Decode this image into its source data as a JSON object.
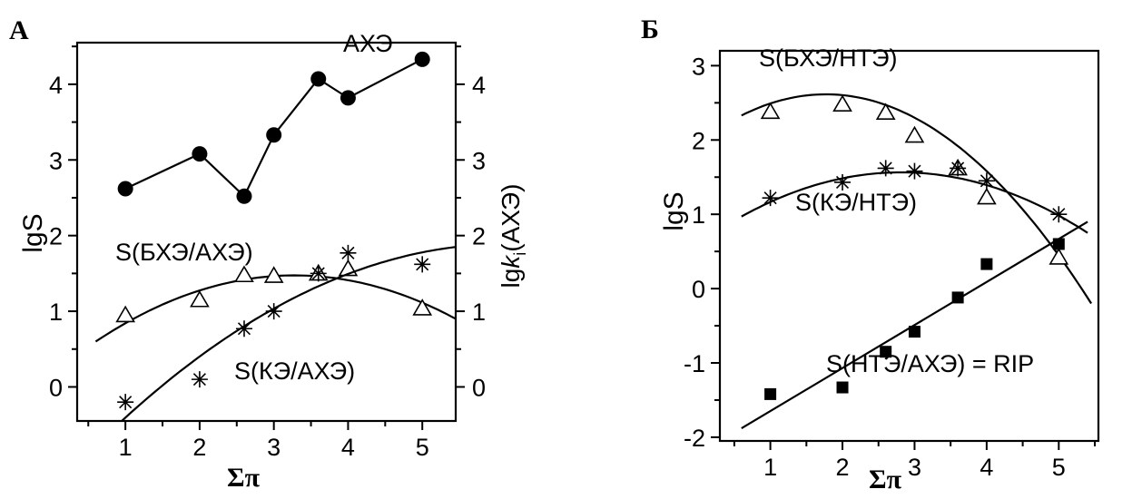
{
  "chart_data": [
    {
      "panel_label": "А",
      "type": "scatter",
      "xlabel": "Σπ",
      "ylabel": "lgS",
      "y2label": "lgki(АХЭ)",
      "xlim": [
        0.35,
        5.45
      ],
      "ylim": [
        -0.45,
        4.55
      ],
      "xticks": [
        1,
        2,
        3,
        4,
        5
      ],
      "yticks": [
        0,
        1,
        2,
        3,
        4
      ],
      "y2ticks": [
        0,
        1,
        2,
        3,
        4
      ],
      "grid": false,
      "series": [
        {
          "name": "АХЭ",
          "marker": "filled-circle",
          "connected": true,
          "x": [
            1,
            2,
            2.6,
            3,
            3.6,
            4,
            5
          ],
          "y": [
            2.62,
            3.08,
            2.52,
            3.33,
            4.07,
            3.82,
            4.33
          ]
        },
        {
          "name": "S(БХЭ/АХЭ)",
          "marker": "open-triangle",
          "connected": false,
          "x": [
            1,
            2,
            2.6,
            3,
            3.6,
            4,
            5
          ],
          "y": [
            0.95,
            1.15,
            1.48,
            1.47,
            1.5,
            1.56,
            1.04
          ],
          "fit": {
            "type": "quadratic",
            "x": [
              0.6,
              3.1,
              5.45
            ],
            "y": [
              0.6,
              1.47,
              0.9
            ]
          }
        },
        {
          "name": "S(КЭ/АХЭ)",
          "marker": "asterisk",
          "connected": false,
          "x": [
            1,
            2,
            2.6,
            3,
            3.6,
            4,
            5
          ],
          "y": [
            -0.2,
            0.1,
            0.77,
            1.0,
            1.5,
            1.77,
            1.62
          ],
          "fit": {
            "type": "quadratic",
            "x": [
              0.95,
              3.2,
              5.45
            ],
            "y": [
              -0.45,
              1.14,
              1.85
            ]
          }
        }
      ]
    },
    {
      "panel_label": "Б",
      "type": "scatter",
      "xlabel": "Σπ",
      "ylabel": "lgS",
      "xlim": [
        0.3,
        5.55
      ],
      "ylim": [
        -2.05,
        3.2
      ],
      "xticks": [
        1,
        2,
        3,
        4,
        5
      ],
      "yticks": [
        -2,
        -1,
        0,
        1,
        2,
        3
      ],
      "grid": false,
      "series": [
        {
          "name": "S(БХЭ/НТЭ)",
          "marker": "open-triangle",
          "connected": false,
          "x": [
            1,
            2,
            2.6,
            3,
            3.6,
            4,
            5
          ],
          "y": [
            2.38,
            2.48,
            2.37,
            2.06,
            1.62,
            1.23,
            0.42
          ],
          "fit": {
            "type": "quadratic",
            "x": [
              0.6,
              3.0,
              5.45
            ],
            "y": [
              2.33,
              2.3,
              -0.2
            ]
          }
        },
        {
          "name": "S(КЭ/НТЭ)",
          "marker": "asterisk",
          "connected": false,
          "x": [
            1,
            2,
            2.6,
            3,
            3.6,
            4,
            5
          ],
          "y": [
            1.22,
            1.43,
            1.62,
            1.58,
            1.62,
            1.45,
            1.0
          ],
          "fit": {
            "type": "quadratic",
            "x": [
              0.6,
              3.0,
              5.4
            ],
            "y": [
              0.97,
              1.56,
              0.75
            ]
          }
        },
        {
          "name": "S(НТЭ/АХЭ) = RIP",
          "marker": "filled-square",
          "connected": false,
          "x": [
            1,
            2,
            2.6,
            3,
            3.6,
            4,
            5
          ],
          "y": [
            -1.42,
            -1.33,
            -0.85,
            -0.58,
            -0.12,
            0.33,
            0.6
          ],
          "fit": {
            "type": "linear",
            "x": [
              0.6,
              5.4
            ],
            "y": [
              -1.88,
              0.9
            ]
          }
        }
      ]
    }
  ]
}
